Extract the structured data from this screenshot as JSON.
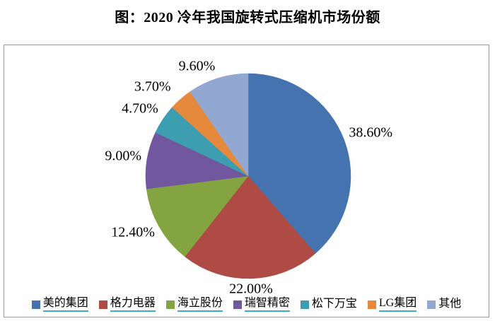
{
  "title": "图：2020 冷年我国旋转式压缩机市场份额",
  "styles": {
    "underline_color": "#3baec7",
    "panel_border_color": "#9a9a9a",
    "label_text_color": "#000000"
  },
  "chart_data": {
    "type": "pie",
    "title": "图：2020 冷年我国旋转式压缩机市场份额",
    "unit": "percent",
    "start_angle_deg": 0,
    "direction": "clockwise",
    "legend_position": "bottom",
    "slices": [
      {
        "label": "美的集团",
        "value": 38.6,
        "display": "38.60%",
        "color": "#4573b0",
        "underline_in_legend": true
      },
      {
        "label": "格力电器",
        "value": 22.0,
        "display": "22.00%",
        "color": "#ae4b45",
        "underline_in_legend": true
      },
      {
        "label": "海立股份",
        "value": 12.4,
        "display": "12.40%",
        "color": "#84a341",
        "underline_in_legend": true
      },
      {
        "label": "瑞智精密",
        "value": 9.0,
        "display": "9.00%",
        "color": "#71589e",
        "underline_in_legend": true
      },
      {
        "label": "松下万宝",
        "value": 4.7,
        "display": "4.70%",
        "color": "#3d9db1",
        "underline_in_legend": false
      },
      {
        "label": "LG集团",
        "value": 3.7,
        "display": "3.70%",
        "color": "#e58a3c",
        "underline_in_legend": true
      },
      {
        "label": "其他",
        "value": 9.6,
        "display": "9.60%",
        "color": "#92a8d0",
        "underline_in_legend": false
      }
    ]
  }
}
